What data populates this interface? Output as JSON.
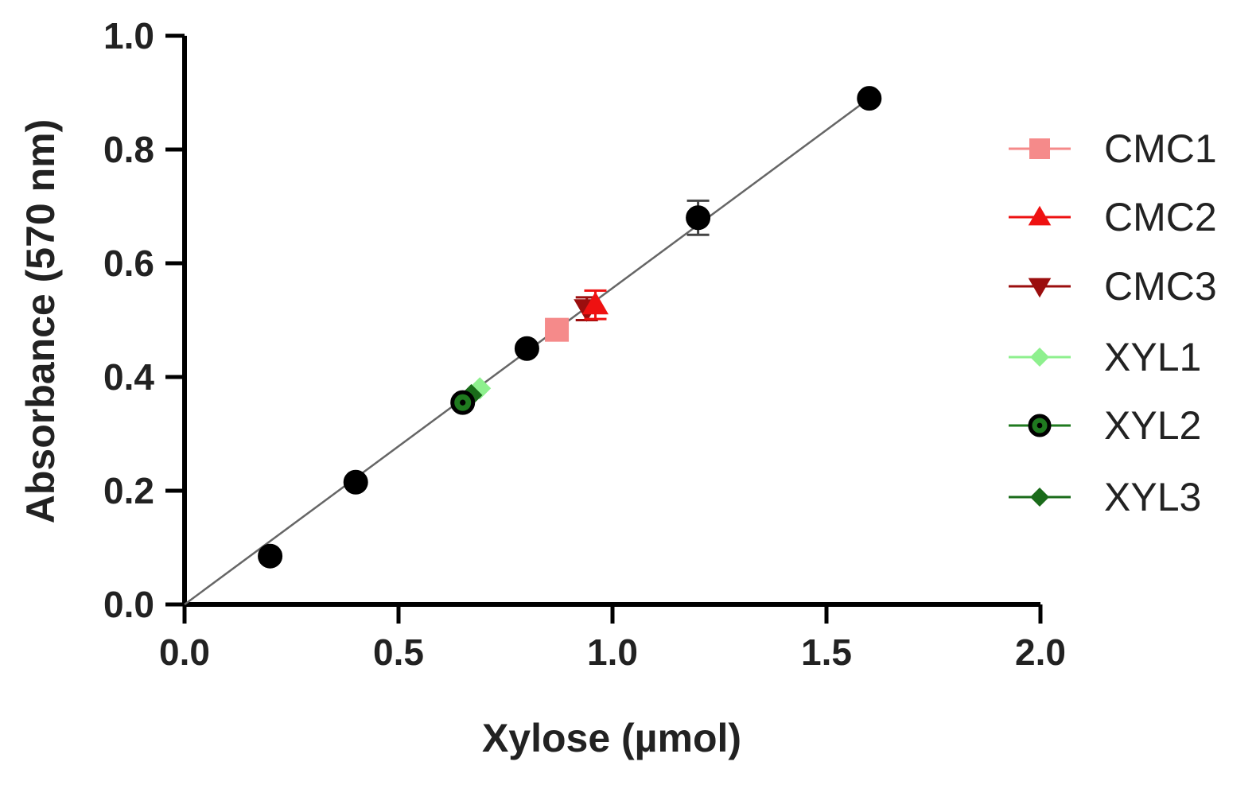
{
  "chart_data": {
    "type": "scatter",
    "xlabel": "Xylose (µmol)",
    "ylabel": "Absorbance (570 nm)",
    "xlim": [
      0.0,
      2.0
    ],
    "ylim": [
      0.0,
      1.0
    ],
    "x_ticks": [
      "0.0",
      "0.5",
      "1.0",
      "1.5",
      "2.0"
    ],
    "y_ticks": [
      "0.0",
      "0.2",
      "0.4",
      "0.6",
      "0.8",
      "1.0"
    ],
    "grid": false,
    "legend_position": "right",
    "fit_line": {
      "from": [
        0.0,
        0.0
      ],
      "to": [
        1.6,
        0.89
      ],
      "color": "#666666"
    },
    "standard": {
      "color": "#000000",
      "marker": "circle",
      "points": [
        {
          "x": 0.2,
          "y": 0.085,
          "err": 0.0
        },
        {
          "x": 0.4,
          "y": 0.215,
          "err": 0.0
        },
        {
          "x": 0.8,
          "y": 0.45,
          "err": 0.0
        },
        {
          "x": 1.2,
          "y": 0.68,
          "err": 0.03
        },
        {
          "x": 1.6,
          "y": 0.89,
          "err": 0.0
        }
      ]
    },
    "series": [
      {
        "name": "CMC1",
        "marker": "square",
        "color": "#f58a8a",
        "x": 0.87,
        "y": 0.483,
        "err": 0.0
      },
      {
        "name": "CMC2",
        "marker": "triangle-up",
        "color": "#ee1111",
        "x": 0.96,
        "y": 0.527,
        "err": 0.025
      },
      {
        "name": "CMC3",
        "marker": "triangle-down",
        "color": "#9b0e0e",
        "x": 0.94,
        "y": 0.52,
        "err": 0.02
      },
      {
        "name": "XYL1",
        "marker": "diamond",
        "color": "#8ef08e",
        "x": 0.69,
        "y": 0.38,
        "err": 0.0
      },
      {
        "name": "XYL2",
        "marker": "circle-dot",
        "color": "#1f7a1f",
        "x": 0.65,
        "y": 0.355,
        "err": 0.0
      },
      {
        "name": "XYL3",
        "marker": "diamond",
        "color": "#1a6b1a",
        "x": 0.67,
        "y": 0.368,
        "err": 0.0
      }
    ]
  }
}
